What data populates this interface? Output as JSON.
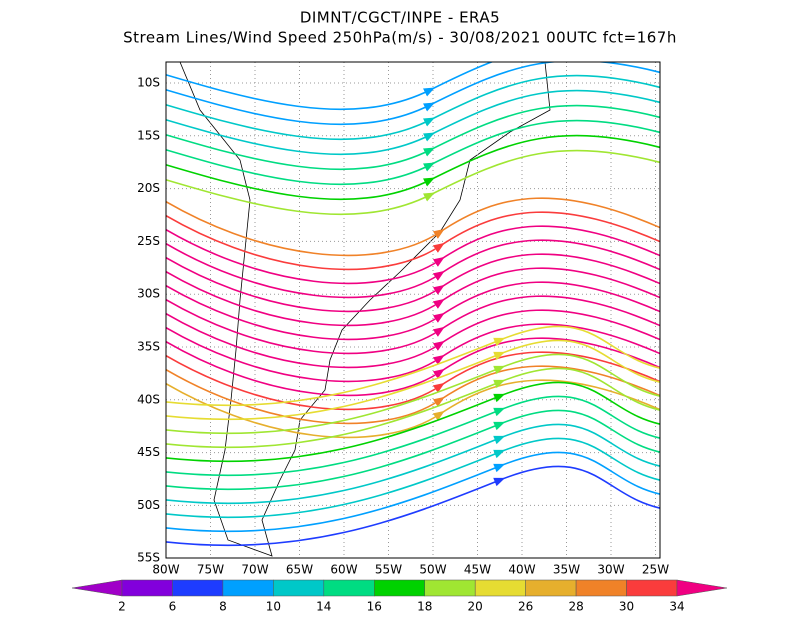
{
  "header": {
    "title": "DIMNT/CGCT/INPE -  ERA5",
    "subtitle": "Stream Lines/Wind Speed 250hPa(m/s) -  30/08/2021 00UTC fct=167h"
  },
  "map": {
    "lon_labels": [
      "80W",
      "75W",
      "70W",
      "65W",
      "60W",
      "55W",
      "50W",
      "45W",
      "40W",
      "35W",
      "30W",
      "25W"
    ],
    "lat_labels": [
      "10S",
      "15S",
      "20S",
      "25S",
      "30S",
      "35S",
      "40S",
      "45S",
      "50S",
      "55S"
    ]
  },
  "colorbar": {
    "labels": [
      "2",
      "6",
      "8",
      "10",
      "14",
      "16",
      "18",
      "20",
      "26",
      "28",
      "30",
      "34"
    ],
    "colors": [
      "#a000c8",
      "#8200dc",
      "#1e3cff",
      "#00a0ff",
      "#00c8c8",
      "#00dc82",
      "#00d200",
      "#a0e632",
      "#e6dc32",
      "#e6af2d",
      "#f08228",
      "#fa3c3c",
      "#f00082"
    ]
  }
}
